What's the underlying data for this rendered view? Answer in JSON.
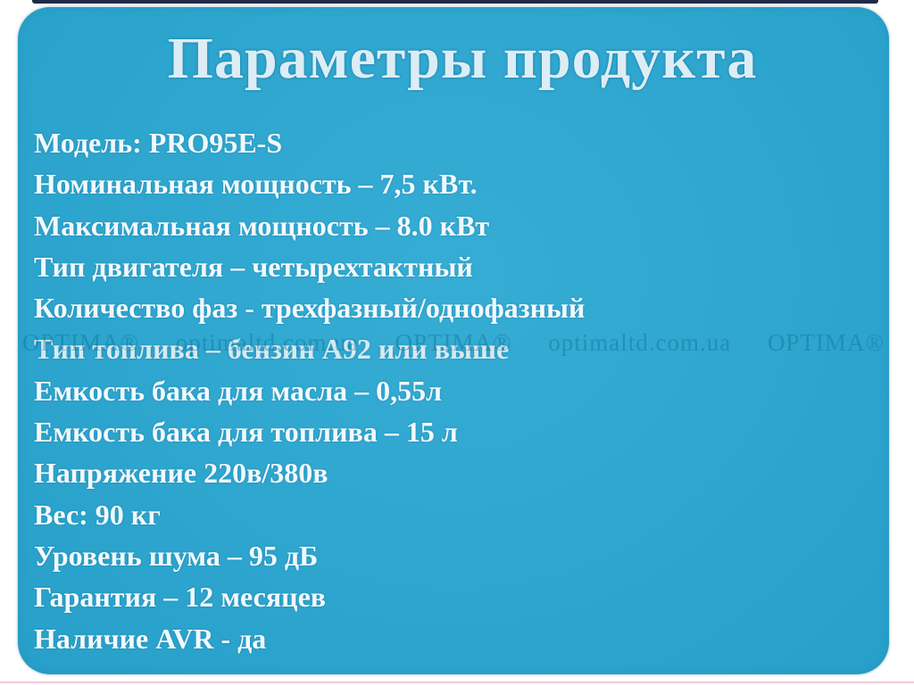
{
  "page": {
    "title": "Параметры продукта"
  },
  "specs": [
    "Модель: PRO95E-S",
    "Номинальная мощность – 7,5 кВт.",
    "Максимальная мощность – 8.0 кВт",
    "Тип двигателя – четырехтактный",
    "Количество фаз - трехфазный/однофазный",
    "Тип топлива – бензин А92 или выше",
    "Емкость бака для масла – 0,55л",
    "Емкость бака для топлива – 15 л",
    "Напряжение 220в/380в",
    "Вес: 90 кг",
    "Уровень шума – 95 дБ",
    "Гарантия – 12 месяцев",
    "Наличие AVR - да"
  ],
  "watermark": {
    "segments": [
      "OPTIMA®",
      "optimaltd.com.ua",
      "OPTIMA®",
      "optimaltd.com.ua",
      "OPTIMA®"
    ]
  },
  "colors": {
    "card_bg": "#2aa8d2",
    "title_color": "#dcedf5",
    "body_color": "#f1f9fc",
    "washed_color": "#d7e9f0",
    "watermark_color": "#0d6991",
    "top_strip": "#1f2b47",
    "bottom_line": "#f1ccd1",
    "page_bg": "#ffffff"
  }
}
